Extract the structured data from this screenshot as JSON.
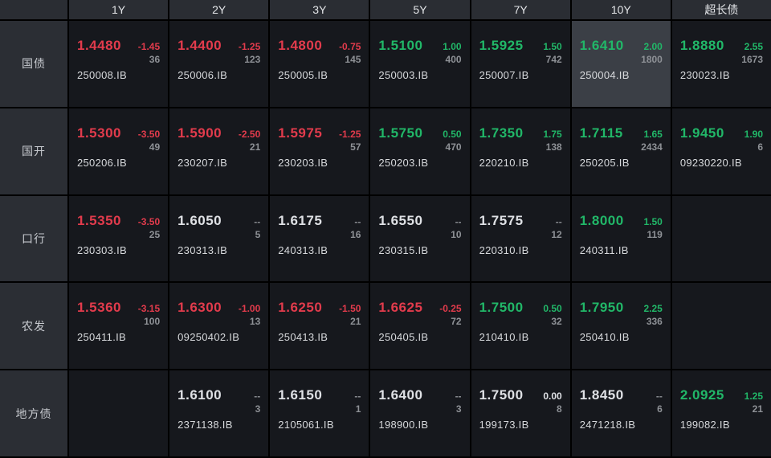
{
  "colors": {
    "up": "#21b768",
    "down": "#e23b4c",
    "flat": "#dfe1e5",
    "muted": "#8a8d92"
  },
  "header": {
    "corner": "",
    "columns": [
      "1Y",
      "2Y",
      "3Y",
      "5Y",
      "7Y",
      "10Y",
      "超长债"
    ]
  },
  "rows": [
    {
      "label": "国债",
      "cells": [
        {
          "yield": "1.4480",
          "yield_trend": "down",
          "change": "-1.45",
          "change_trend": "down",
          "volume": "36",
          "code": "250008.IB"
        },
        {
          "yield": "1.4400",
          "yield_trend": "down",
          "change": "-1.25",
          "change_trend": "down",
          "volume": "123",
          "code": "250006.IB"
        },
        {
          "yield": "1.4800",
          "yield_trend": "down",
          "change": "-0.75",
          "change_trend": "down",
          "volume": "145",
          "code": "250005.IB"
        },
        {
          "yield": "1.5100",
          "yield_trend": "up",
          "change": "1.00",
          "change_trend": "up",
          "volume": "400",
          "code": "250003.IB"
        },
        {
          "yield": "1.5925",
          "yield_trend": "up",
          "change": "1.50",
          "change_trend": "up",
          "volume": "742",
          "code": "250007.IB"
        },
        {
          "yield": "1.6410",
          "yield_trend": "up",
          "change": "2.00",
          "change_trend": "up",
          "volume": "1800",
          "code": "250004.IB",
          "highlight": true
        },
        {
          "yield": "1.8880",
          "yield_trend": "up",
          "change": "2.55",
          "change_trend": "up",
          "volume": "1673",
          "code": "230023.IB"
        }
      ]
    },
    {
      "label": "国开",
      "cells": [
        {
          "yield": "1.5300",
          "yield_trend": "down",
          "change": "-3.50",
          "change_trend": "down",
          "volume": "49",
          "code": "250206.IB"
        },
        {
          "yield": "1.5900",
          "yield_trend": "down",
          "change": "-2.50",
          "change_trend": "down",
          "volume": "21",
          "code": "230207.IB"
        },
        {
          "yield": "1.5975",
          "yield_trend": "down",
          "change": "-1.25",
          "change_trend": "down",
          "volume": "57",
          "code": "230203.IB"
        },
        {
          "yield": "1.5750",
          "yield_trend": "up",
          "change": "0.50",
          "change_trend": "up",
          "volume": "470",
          "code": "250203.IB"
        },
        {
          "yield": "1.7350",
          "yield_trend": "up",
          "change": "1.75",
          "change_trend": "up",
          "volume": "138",
          "code": "220210.IB"
        },
        {
          "yield": "1.7115",
          "yield_trend": "up",
          "change": "1.65",
          "change_trend": "up",
          "volume": "2434",
          "code": "250205.IB"
        },
        {
          "yield": "1.9450",
          "yield_trend": "up",
          "change": "1.90",
          "change_trend": "up",
          "volume": "6",
          "code": "09230220.IB"
        }
      ]
    },
    {
      "label": "口行",
      "cells": [
        {
          "yield": "1.5350",
          "yield_trend": "down",
          "change": "-3.50",
          "change_trend": "down",
          "volume": "25",
          "code": "230303.IB"
        },
        {
          "yield": "1.6050",
          "yield_trend": "flat",
          "change": "--",
          "change_trend": "muted",
          "volume": "5",
          "code": "230313.IB"
        },
        {
          "yield": "1.6175",
          "yield_trend": "flat",
          "change": "--",
          "change_trend": "muted",
          "volume": "16",
          "code": "240313.IB"
        },
        {
          "yield": "1.6550",
          "yield_trend": "flat",
          "change": "--",
          "change_trend": "muted",
          "volume": "10",
          "code": "230315.IB"
        },
        {
          "yield": "1.7575",
          "yield_trend": "flat",
          "change": "--",
          "change_trend": "muted",
          "volume": "12",
          "code": "220310.IB"
        },
        {
          "yield": "1.8000",
          "yield_trend": "up",
          "change": "1.50",
          "change_trend": "up",
          "volume": "119",
          "code": "240311.IB"
        },
        {
          "empty": true
        }
      ]
    },
    {
      "label": "农发",
      "cells": [
        {
          "yield": "1.5360",
          "yield_trend": "down",
          "change": "-3.15",
          "change_trend": "down",
          "volume": "100",
          "code": "250411.IB"
        },
        {
          "yield": "1.6300",
          "yield_trend": "down",
          "change": "-1.00",
          "change_trend": "down",
          "volume": "13",
          "code": "09250402.IB"
        },
        {
          "yield": "1.6250",
          "yield_trend": "down",
          "change": "-1.50",
          "change_trend": "down",
          "volume": "21",
          "code": "250413.IB"
        },
        {
          "yield": "1.6625",
          "yield_trend": "down",
          "change": "-0.25",
          "change_trend": "down",
          "volume": "72",
          "code": "250405.IB"
        },
        {
          "yield": "1.7500",
          "yield_trend": "up",
          "change": "0.50",
          "change_trend": "up",
          "volume": "32",
          "code": "210410.IB"
        },
        {
          "yield": "1.7950",
          "yield_trend": "up",
          "change": "2.25",
          "change_trend": "up",
          "volume": "336",
          "code": "250410.IB"
        },
        {
          "empty": true
        }
      ]
    },
    {
      "label": "地方债",
      "cells": [
        {
          "empty": true
        },
        {
          "yield": "1.6100",
          "yield_trend": "flat",
          "change": "--",
          "change_trend": "muted",
          "volume": "3",
          "code": "2371138.IB"
        },
        {
          "yield": "1.6150",
          "yield_trend": "flat",
          "change": "--",
          "change_trend": "muted",
          "volume": "1",
          "code": "2105061.IB"
        },
        {
          "yield": "1.6400",
          "yield_trend": "flat",
          "change": "--",
          "change_trend": "muted",
          "volume": "3",
          "code": "198900.IB"
        },
        {
          "yield": "1.7500",
          "yield_trend": "flat",
          "change": "0.00",
          "change_trend": "flat",
          "volume": "8",
          "code": "199173.IB"
        },
        {
          "yield": "1.8450",
          "yield_trend": "flat",
          "change": "--",
          "change_trend": "muted",
          "volume": "6",
          "code": "2471218.IB"
        },
        {
          "yield": "2.0925",
          "yield_trend": "up",
          "change": "1.25",
          "change_trend": "up",
          "volume": "21",
          "code": "199082.IB"
        }
      ]
    }
  ]
}
